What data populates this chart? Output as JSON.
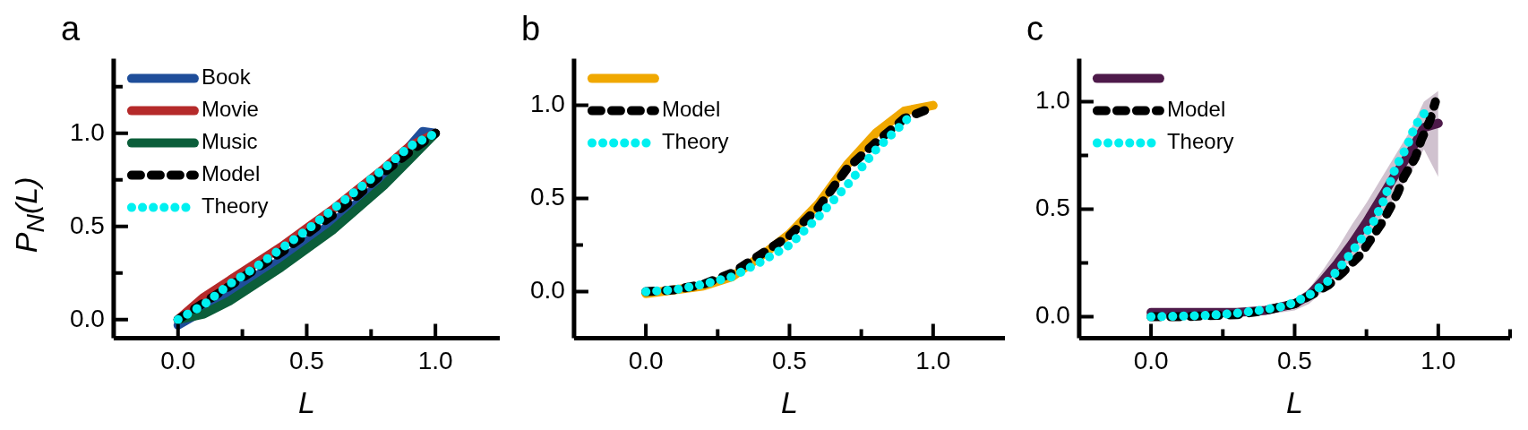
{
  "chart_data": [
    {
      "type": "line",
      "title": "a",
      "xlabel": "L",
      "ylabel": "P$_{N}$(L)",
      "xlim": [
        -0.25,
        1.25
      ],
      "xticks": [
        {
          "value": 0,
          "label": "0.0"
        },
        {
          "value": 0.25,
          "label": null
        },
        {
          "value": 0.5,
          "label": "0.5"
        },
        {
          "value": 0.75,
          "label": null
        },
        {
          "value": 1,
          "label": "1.0"
        }
      ],
      "ylim": [
        -0.1,
        1.4
      ],
      "yticks": [
        {
          "value": 0,
          "label": "0.0"
        },
        {
          "value": 0.25,
          "label": null
        },
        {
          "value": 0.5,
          "label": "0.5"
        },
        {
          "value": 0.75,
          "label": null
        },
        {
          "value": 1,
          "label": "1.0"
        },
        {
          "value": 1.25,
          "label": null
        }
      ],
      "grid": false,
      "legend": "top left",
      "series": [
        {
          "name": "Book",
          "color": "#1f4e9a",
          "line_style": "solid",
          "x": [
            0,
            0.1,
            0.2,
            0.3,
            0.4,
            0.5,
            0.6,
            0.7,
            0.8,
            0.9,
            0.95,
            1
          ],
          "values": [
            -0.03,
            0.05,
            0.14,
            0.23,
            0.32,
            0.42,
            0.52,
            0.63,
            0.75,
            0.93,
            1.01,
            1
          ]
        },
        {
          "name": "Movie",
          "color": "#b52a2a",
          "line_style": "solid",
          "x": [
            0,
            0.1,
            0.2,
            0.3,
            0.4,
            0.5,
            0.6,
            0.7,
            0.8,
            0.9,
            1
          ],
          "values": [
            0,
            0.12,
            0.21,
            0.3,
            0.39,
            0.49,
            0.59,
            0.7,
            0.81,
            0.93,
            1
          ]
        },
        {
          "name": "Music",
          "color": "#0b5e3a",
          "line_style": "solid",
          "x": [
            0,
            0.1,
            0.2,
            0.3,
            0.4,
            0.5,
            0.6,
            0.7,
            0.8,
            0.9,
            1
          ],
          "values": [
            0,
            0.03,
            0.1,
            0.19,
            0.28,
            0.38,
            0.48,
            0.6,
            0.72,
            0.86,
            1
          ]
        },
        {
          "name": "Model",
          "color": "#000000",
          "line_style": "dashed",
          "x": [
            0,
            0.1,
            0.2,
            0.3,
            0.4,
            0.5,
            0.6,
            0.7,
            0.8,
            0.9,
            1
          ],
          "values": [
            0,
            0.09,
            0.18,
            0.27,
            0.36,
            0.46,
            0.56,
            0.67,
            0.79,
            0.9,
            1
          ]
        },
        {
          "name": "Theory",
          "color": "#00f0f0",
          "line_style": "dotted",
          "x": [
            0,
            0.1,
            0.2,
            0.3,
            0.4,
            0.5,
            0.6,
            0.7,
            0.8,
            0.9,
            1
          ],
          "values": [
            0,
            0.08,
            0.19,
            0.28,
            0.38,
            0.48,
            0.59,
            0.7,
            0.81,
            0.93,
            1
          ]
        }
      ]
    },
    {
      "type": "line",
      "title": "b",
      "xlabel": "L",
      "xlim": [
        -0.25,
        1.25
      ],
      "xticks": [
        {
          "value": 0,
          "label": "0.0"
        },
        {
          "value": 0.25,
          "label": null
        },
        {
          "value": 0.5,
          "label": "0.5"
        },
        {
          "value": 0.75,
          "label": null
        },
        {
          "value": 1,
          "label": "1.0"
        }
      ],
      "ylim": [
        -0.25,
        1.25
      ],
      "yticks": [
        {
          "value": 0,
          "label": "0.0"
        },
        {
          "value": 0.25,
          "label": null
        },
        {
          "value": 0.5,
          "label": "0.5"
        },
        {
          "value": 1,
          "label": "1.0"
        }
      ],
      "grid": false,
      "legend": "top left",
      "series": [
        {
          "color": "#f0a800",
          "line_style": "solid",
          "x": [
            0,
            0.1,
            0.2,
            0.3,
            0.4,
            0.5,
            0.6,
            0.7,
            0.8,
            0.9,
            1
          ],
          "values": [
            -0.01,
            0.01,
            0.03,
            0.08,
            0.19,
            0.31,
            0.47,
            0.68,
            0.85,
            0.97,
            1
          ]
        },
        {
          "name": "Model",
          "color": "#000000",
          "line_style": "dashed",
          "x": [
            0,
            0.1,
            0.2,
            0.3,
            0.4,
            0.5,
            0.6,
            0.7,
            0.8,
            0.9,
            1
          ],
          "values": [
            0,
            0.01,
            0.04,
            0.1,
            0.2,
            0.3,
            0.45,
            0.66,
            0.8,
            0.93,
            0.99
          ]
        },
        {
          "name": "Theory",
          "color": "#00f0f0",
          "line_style": "dotted",
          "x": [
            0,
            0.1,
            0.2,
            0.3,
            0.4,
            0.5,
            0.6,
            0.7,
            0.8,
            0.9,
            0.93
          ],
          "values": [
            0,
            0.01,
            0.04,
            0.08,
            0.16,
            0.25,
            0.4,
            0.57,
            0.76,
            0.91,
            0.96
          ]
        }
      ]
    },
    {
      "type": "line",
      "title": "c",
      "xlabel": "L",
      "xlim": [
        -0.25,
        1.25
      ],
      "xticks": [
        {
          "value": 0,
          "label": "0.0"
        },
        {
          "value": 0.25,
          "label": null
        },
        {
          "value": 0.5,
          "label": "0.5"
        },
        {
          "value": 0.75,
          "label": null
        },
        {
          "value": 1,
          "label": "1.0"
        },
        {
          "value": 1.25,
          "label": null
        }
      ],
      "ylim": [
        -0.1,
        1.2
      ],
      "yticks": [
        {
          "value": 0,
          "label": "0.0"
        },
        {
          "value": 0.25,
          "label": null
        },
        {
          "value": 0.5,
          "label": "0.5"
        },
        {
          "value": 0.75,
          "label": null
        },
        {
          "value": 1,
          "label": "1.0"
        }
      ],
      "grid": false,
      "legend": "top left",
      "series": [
        {
          "color": "#4e1a4a",
          "line_style": "solid",
          "x": [
            0,
            0.1,
            0.2,
            0.3,
            0.4,
            0.5,
            0.55,
            0.6,
            0.65,
            0.7,
            0.75,
            0.8,
            0.85,
            0.9,
            0.95,
            1
          ],
          "values": [
            0.02,
            0.02,
            0.02,
            0.02,
            0.03,
            0.06,
            0.1,
            0.17,
            0.25,
            0.34,
            0.44,
            0.55,
            0.66,
            0.76,
            0.88,
            0.9
          ],
          "lower": [
            0,
            0,
            0,
            0,
            0.01,
            0.03,
            0.06,
            0.12,
            0.19,
            0.27,
            0.36,
            0.46,
            0.56,
            0.66,
            0.78,
            0.65
          ],
          "upper": [
            0.04,
            0.04,
            0.04,
            0.04,
            0.05,
            0.08,
            0.13,
            0.22,
            0.32,
            0.43,
            0.53,
            0.64,
            0.75,
            0.86,
            1.0,
            1.05
          ]
        },
        {
          "name": "Model",
          "color": "#000000",
          "line_style": "dashed",
          "x": [
            0,
            0.1,
            0.2,
            0.3,
            0.4,
            0.5,
            0.57,
            0.62,
            0.67,
            0.73,
            0.77,
            0.8,
            0.83,
            0.86,
            0.88,
            0.92,
            0.94,
            0.97,
            0.99
          ],
          "values": [
            0,
            0,
            0.005,
            0.01,
            0.03,
            0.06,
            0.11,
            0.15,
            0.21,
            0.29,
            0.37,
            0.43,
            0.5,
            0.58,
            0.65,
            0.74,
            0.82,
            0.91,
            1
          ]
        },
        {
          "name": "Theory",
          "color": "#00f0f0",
          "line_style": "dotted",
          "x": [
            0,
            0.1,
            0.2,
            0.29,
            0.38,
            0.47,
            0.55,
            0.62,
            0.67,
            0.72,
            0.77,
            0.81,
            0.85,
            0.89,
            0.92,
            0.97
          ],
          "values": [
            0,
            0.003,
            0.007,
            0.015,
            0.03,
            0.05,
            0.1,
            0.17,
            0.25,
            0.34,
            0.43,
            0.54,
            0.69,
            0.79,
            0.89,
            0.98
          ]
        }
      ]
    }
  ]
}
